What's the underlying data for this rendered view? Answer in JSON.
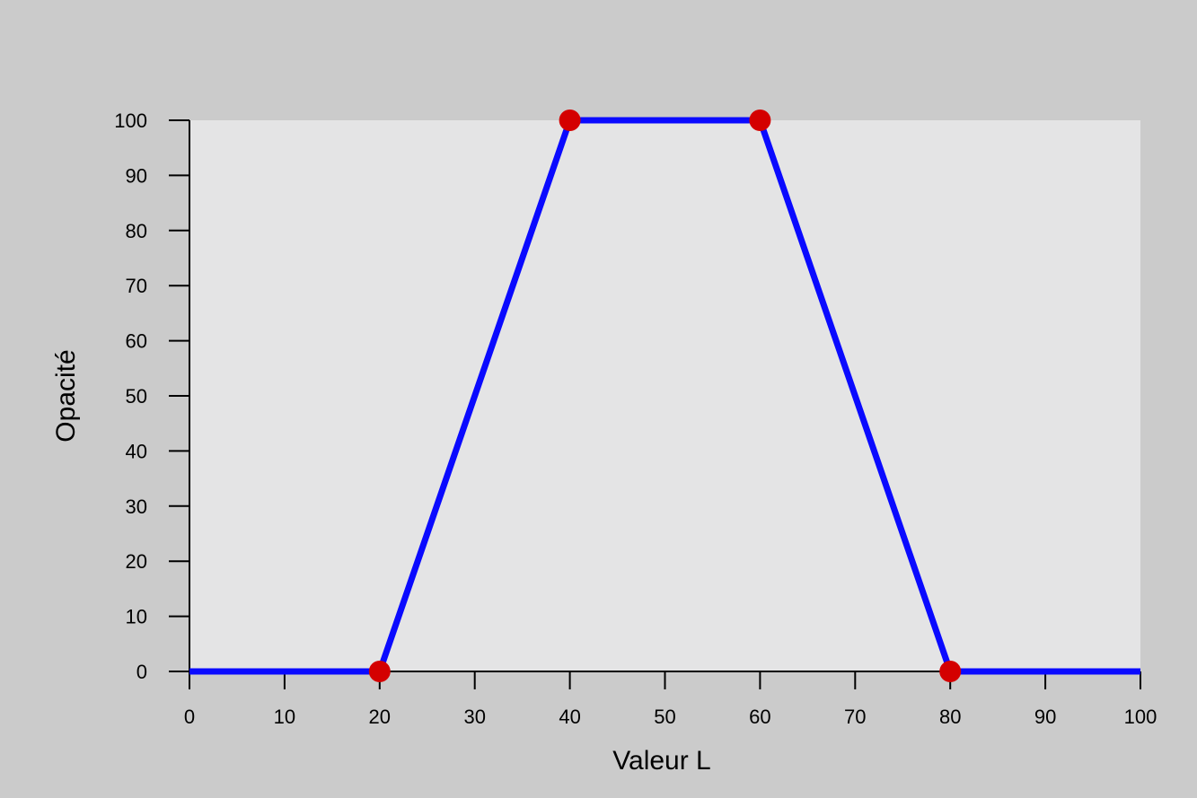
{
  "chart_data": {
    "type": "line",
    "title": "",
    "xlabel": "Valeur L",
    "ylabel": "Opacité",
    "xlim": [
      0,
      100
    ],
    "ylim": [
      0,
      100
    ],
    "x_ticks": [
      0,
      10,
      20,
      30,
      40,
      50,
      60,
      70,
      80,
      90,
      100
    ],
    "y_ticks": [
      0,
      10,
      20,
      30,
      40,
      50,
      60,
      70,
      80,
      90,
      100
    ],
    "grid": false,
    "legend": "none",
    "series": [
      {
        "x": [
          0,
          20,
          40,
          60,
          80,
          100
        ],
        "y": [
          0,
          0,
          100,
          100,
          0,
          0
        ],
        "color": "#0a0aff"
      }
    ],
    "control_points": {
      "x": [
        20,
        40,
        60,
        80
      ],
      "y": [
        0,
        100,
        100,
        0
      ],
      "color": "#d40000"
    },
    "colors": {
      "outer_background": "#cbcbcb",
      "plot_background": "#e4e4e5",
      "axis": "#000000"
    }
  }
}
